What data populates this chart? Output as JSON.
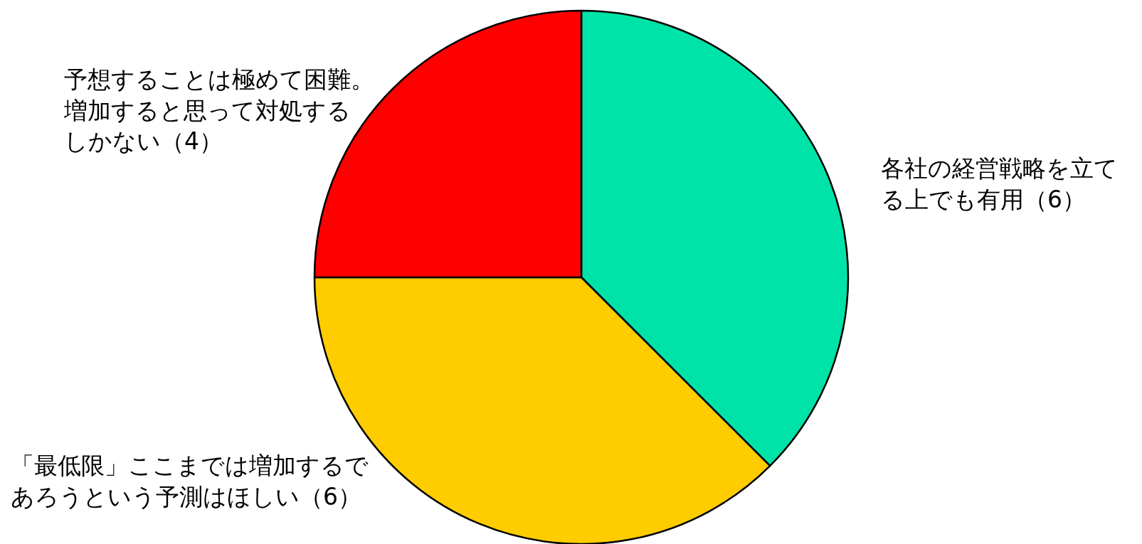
{
  "chart_data": {
    "type": "pie",
    "categories": [
      "各社の経営戦略を立てる上でも有用（6）",
      "「最低限」ここまでは増加するであろうという予測はほしい（6）",
      "予想することは極めて困難。増加すると思って対処するしかない（4）"
    ],
    "values": [
      6,
      6,
      4
    ],
    "colors": [
      "#00e3a8",
      "#ffcc00",
      "#ff0000"
    ]
  }
}
